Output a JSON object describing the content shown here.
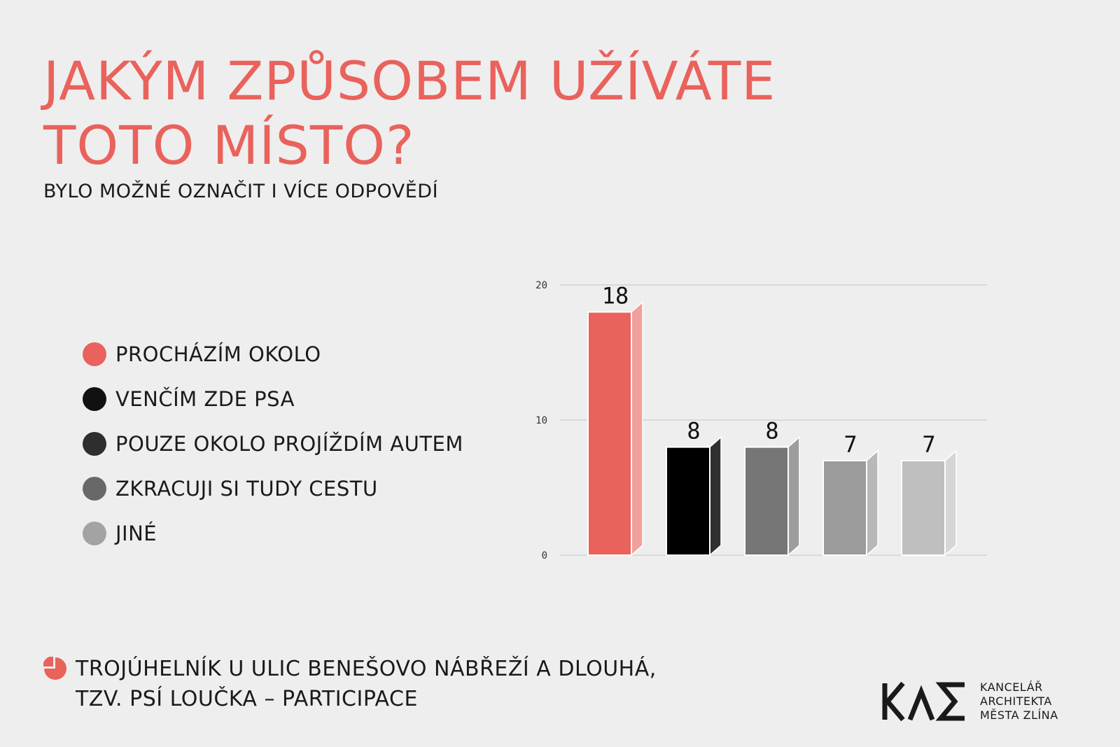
{
  "title": {
    "line1": "JAKÝM ZPŮSOBEM UŽÍVÁTE",
    "line2": "TOTO MÍSTO?"
  },
  "subtitle": "BYLO MOŽNÉ OZNAČIT I VÍCE ODPOVĚDÍ",
  "legend": [
    {
      "label": "PROCHÁZÍM OKOLO",
      "color": "#e9625c"
    },
    {
      "label": "VENČÍM ZDE PSA",
      "color": "#111111"
    },
    {
      "label": "POUZE OKOLO PROJÍŽDÍM AUTEM",
      "color": "#2e2e2e"
    },
    {
      "label": "ZKRACUJI SI TUDY CESTU",
      "color": "#686868"
    },
    {
      "label": "JINÉ",
      "color": "#a3a3a3"
    }
  ],
  "chart_data": {
    "type": "bar",
    "categories": [
      "PROCHÁZÍM OKOLO",
      "VENČÍM ZDE PSA",
      "POUZE OKOLO PROJÍŽDÍM AUTEM",
      "ZKRACUJI SI TUDY CESTU",
      "JINÉ"
    ],
    "values": [
      18,
      8,
      8,
      7,
      7
    ],
    "colors": [
      "#e9625c",
      "#000000",
      "#767676",
      "#9b9b9b",
      "#bfbfbf"
    ],
    "side_colors": [
      "#f2a09c",
      "#303030",
      "#9d9d9d",
      "#b8b8b8",
      "#d6d6d6"
    ],
    "ylim": [
      0,
      20
    ],
    "yticks": [
      0,
      10,
      20
    ],
    "grid": true,
    "data_labels": true,
    "title": "",
    "xlabel": "",
    "ylabel": ""
  },
  "footer": {
    "line1": "TROJÚHELNÍK U ULIC BENEŠOVO NÁBŘEŽÍ A DLOUHÁ,",
    "line2": "TZV. PSÍ LOUČKA – PARTICIPACE",
    "icon": "pie-chart-icon",
    "icon_color": "#e9625c"
  },
  "logo": {
    "line1": "KANCELÁŘ",
    "line2": "ARCHITEKTA",
    "line3": "MĚSTA ZLÍNA"
  }
}
